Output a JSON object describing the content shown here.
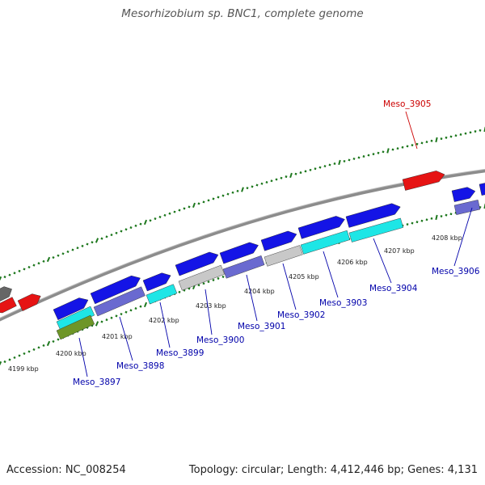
{
  "title": "Mesorhizobium sp. BNC1, complete genome",
  "footer": {
    "accession": "Accession: NC_008254",
    "summary": "Topology: circular; Length: 4,412,446 bp; Genes: 4,131"
  },
  "colors": {
    "forward_gene": "#1414e6",
    "reverse_gene": "#6a6ad0",
    "highlight_gene": "#e61414",
    "cog_cyan": "#1ee6e6",
    "cog_gray": "#c8c8c8",
    "cog_olive": "#6e9628",
    "backbone": "#8c8c8c",
    "tick_green": "#1e781e",
    "label_blue": "#0000aa",
    "label_red": "#cc0000"
  },
  "axis_ticks": [
    "4199 kbp",
    "4200 kbp",
    "4201 kbp",
    "4202 kbp",
    "4203 kbp",
    "4204 kbp",
    "4205 kbp",
    "4206 kbp",
    "4207 kbp",
    "4208 kbp"
  ],
  "gene_labels": [
    {
      "id": "g3897",
      "text": "Meso_3897",
      "color": "blue"
    },
    {
      "id": "g3898",
      "text": "Meso_3898",
      "color": "blue"
    },
    {
      "id": "g3899",
      "text": "Meso_3899",
      "color": "blue"
    },
    {
      "id": "g3900",
      "text": "Meso_3900",
      "color": "blue"
    },
    {
      "id": "g3901",
      "text": "Meso_3901",
      "color": "blue"
    },
    {
      "id": "g3902",
      "text": "Meso_3902",
      "color": "blue"
    },
    {
      "id": "g3903",
      "text": "Meso_3903",
      "color": "blue"
    },
    {
      "id": "g3904",
      "text": "Meso_3904",
      "color": "blue"
    },
    {
      "id": "g3905",
      "text": "Meso_3905",
      "color": "red"
    },
    {
      "id": "g3906",
      "text": "Meso_3906",
      "color": "blue"
    }
  ]
}
